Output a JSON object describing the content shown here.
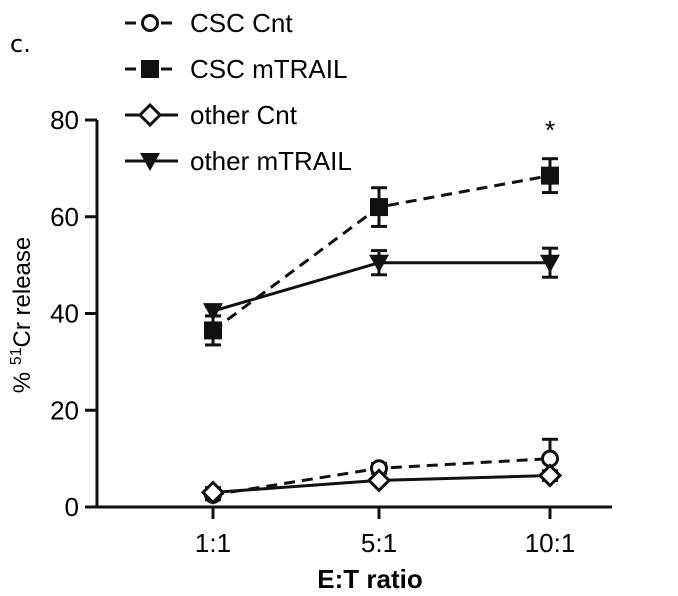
{
  "panel_label": "c.",
  "chart_data": {
    "type": "line",
    "title": "",
    "xlabel": "E:T ratio",
    "ylabel_prefix": "% ",
    "ylabel_superscript": "51",
    "ylabel_suffix": "Cr release",
    "categories": [
      "1:1",
      "5:1",
      "10:1"
    ],
    "ylim": [
      0,
      80
    ],
    "yticks": [
      0,
      20,
      40,
      60,
      80
    ],
    "grid": false,
    "legend_position": "top-left",
    "series": [
      {
        "name": "CSC Cnt",
        "values": [
          2.5,
          8,
          10
        ],
        "errors": [
          1,
          1,
          4
        ],
        "marker": "open-circle",
        "line": "dashed"
      },
      {
        "name": "CSC mTRAIL",
        "values": [
          36.5,
          62,
          68.5
        ],
        "errors": [
          3,
          4,
          3.5
        ],
        "marker": "filled-square",
        "line": "dashed"
      },
      {
        "name": "other Cnt",
        "values": [
          3,
          5.5,
          6.5
        ],
        "errors": [
          1,
          0.5,
          1
        ],
        "marker": "open-diamond",
        "line": "solid"
      },
      {
        "name": "other mTRAIL",
        "values": [
          40.5,
          50.5,
          50.5
        ],
        "errors": [
          1,
          2.5,
          3
        ],
        "marker": "filled-triangle-down",
        "line": "solid"
      }
    ],
    "annotations": [
      {
        "text": "*",
        "x": "10:1",
        "y": 79
      }
    ],
    "color": "#111111"
  }
}
